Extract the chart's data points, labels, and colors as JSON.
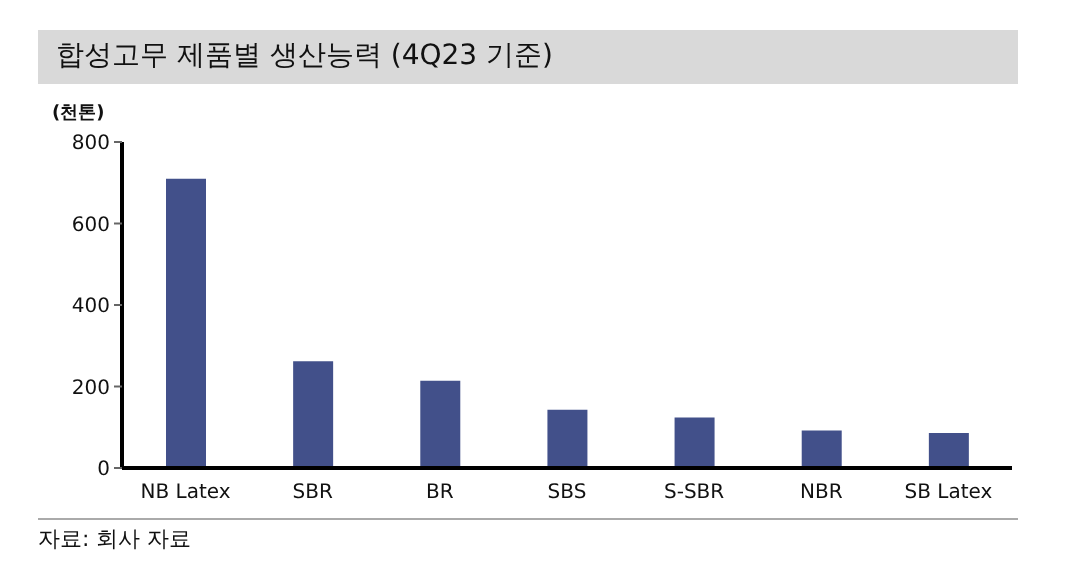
{
  "chart_data": {
    "type": "bar",
    "title": "합성고무 제품별 생산능력 (4Q23 기준)",
    "ylabel": "(천톤)",
    "categories": [
      "NB Latex",
      "SBR",
      "BR",
      "SBS",
      "S-SBR",
      "NBR",
      "SB Latex"
    ],
    "values": [
      710,
      262,
      214,
      143,
      124,
      92,
      86
    ],
    "color": "#42508a",
    "ylim": [
      0,
      800
    ],
    "yticks": [
      0,
      200,
      400,
      600,
      800
    ],
    "annotations": [
      "자료: 회사 자료"
    ]
  }
}
